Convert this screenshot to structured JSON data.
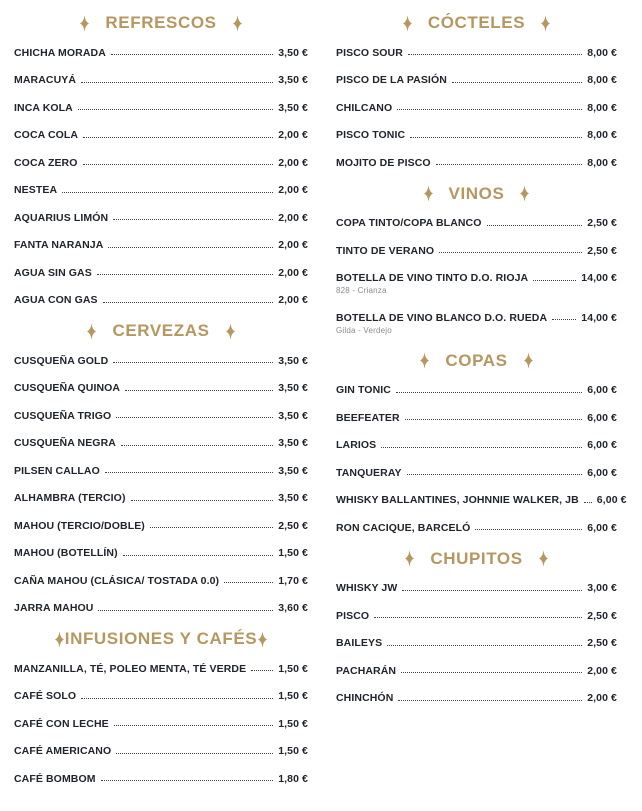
{
  "page": {
    "background": "#ffffff",
    "accent_gold": "#b5975f",
    "text_color": "#20242c",
    "note_color": "#8b8b8b"
  },
  "icons": {
    "section_star": "sparkle-four-point-icon"
  },
  "columns": [
    {
      "side": "left",
      "sections": [
        {
          "title": "REFRESCOS",
          "stars_attached": false,
          "items": [
            {
              "name": "CHICHA MORADA",
              "price": "3,50 €"
            },
            {
              "name": "MARACUYÁ",
              "price": "3,50 €"
            },
            {
              "name": "INCA KOLA",
              "price": "3,50 €"
            },
            {
              "name": "COCA COLA",
              "price": "2,00 €"
            },
            {
              "name": "COCA ZERO",
              "price": "2,00 €"
            },
            {
              "name": "NESTEA",
              "price": "2,00 €"
            },
            {
              "name": "AQUARIUS LIMÓN",
              "price": "2,00 €"
            },
            {
              "name": "FANTA NARANJA",
              "price": "2,00 €"
            },
            {
              "name": "AGUA SIN GAS",
              "price": "2,00 €"
            },
            {
              "name": "AGUA CON GAS",
              "price": "2,00 €"
            }
          ]
        },
        {
          "title": "CERVEZAS",
          "stars_attached": false,
          "items": [
            {
              "name": "CUSQUEÑA GOLD",
              "price": "3,50 €"
            },
            {
              "name": "CUSQUEÑA QUINOA",
              "price": "3,50 €"
            },
            {
              "name": "CUSQUEÑA TRIGO",
              "price": "3,50 €"
            },
            {
              "name": "CUSQUEÑA NEGRA",
              "price": "3,50 €"
            },
            {
              "name": "PILSEN CALLAO",
              "price": "3,50 €"
            },
            {
              "name": "ALHAMBRA (TERCIO)",
              "price": "3,50 €"
            },
            {
              "name": "MAHOU (TERCIO/DOBLE)",
              "price": "2,50 €"
            },
            {
              "name": "MAHOU (BOTELLÍN)",
              "price": "1,50 €"
            },
            {
              "name": "CAÑA MAHOU (CLÁSICA/ TOSTADA 0.0)",
              "price": "1,70 €"
            },
            {
              "name": "JARRA MAHOU",
              "price": "3,60 €"
            }
          ]
        },
        {
          "title": "INFUSIONES Y CAFÉS",
          "stars_attached": true,
          "items": [
            {
              "name": "MANZANILLA, TÉ, POLEO MENTA, TÉ VERDE",
              "price": "1,50 €"
            },
            {
              "name": "CAFÉ SOLO",
              "price": "1,50 €"
            },
            {
              "name": "CAFÉ CON LECHE",
              "price": "1,50 €"
            },
            {
              "name": "CAFÉ AMERICANO",
              "price": "1,50 €"
            },
            {
              "name": "CAFÉ BOMBOM",
              "price": "1,80 €"
            }
          ]
        }
      ]
    },
    {
      "side": "right",
      "sections": [
        {
          "title": "CÓCTELES",
          "stars_attached": false,
          "items": [
            {
              "name": "PISCO SOUR",
              "price": "8,00 €"
            },
            {
              "name": "PISCO DE LA PASIÓN",
              "price": "8,00 €"
            },
            {
              "name": "CHILCANO",
              "price": "8,00 €"
            },
            {
              "name": "PISCO TONIC",
              "price": "8,00 €"
            },
            {
              "name": "MOJITO DE PISCO",
              "price": "8,00 €"
            }
          ]
        },
        {
          "title": "VINOS",
          "stars_attached": false,
          "items": [
            {
              "name": "COPA TINTO/COPA BLANCO",
              "price": "2,50 €"
            },
            {
              "name": "TINTO DE VERANO",
              "price": "2,50 €"
            },
            {
              "name": "BOTELLA DE VINO TINTO D.O. RIOJA",
              "price": "14,00 €",
              "note": "828 - Crianza"
            },
            {
              "name": "BOTELLA DE VINO BLANCO D.O. RUEDA",
              "price": "14,00 €",
              "note": "Gilda - Verdejo"
            }
          ]
        },
        {
          "title": "COPAS",
          "stars_attached": false,
          "items": [
            {
              "name": "GIN TONIC",
              "price": "6,00 €"
            },
            {
              "name": "BEEFEATER",
              "price": "6,00 €"
            },
            {
              "name": "LARIOS",
              "price": "6,00 €"
            },
            {
              "name": "TANQUERAY",
              "price": "6,00 €"
            },
            {
              "name": "WHISKY BALLANTINES, JOHNNIE WALKER, JB",
              "price": "6,00 €"
            },
            {
              "name": "RON CACIQUE, BARCELÓ",
              "price": "6,00 €"
            }
          ]
        },
        {
          "title": "CHUPITOS",
          "stars_attached": false,
          "items": [
            {
              "name": "WHISKY JW",
              "price": "3,00 €"
            },
            {
              "name": "PISCO",
              "price": "2,50 €"
            },
            {
              "name": "BAILEYS",
              "price": "2,50 €"
            },
            {
              "name": "PACHARÁN",
              "price": "2,00 €"
            },
            {
              "name": "CHINCHÓN",
              "price": "2,00 €"
            }
          ]
        }
      ]
    }
  ]
}
